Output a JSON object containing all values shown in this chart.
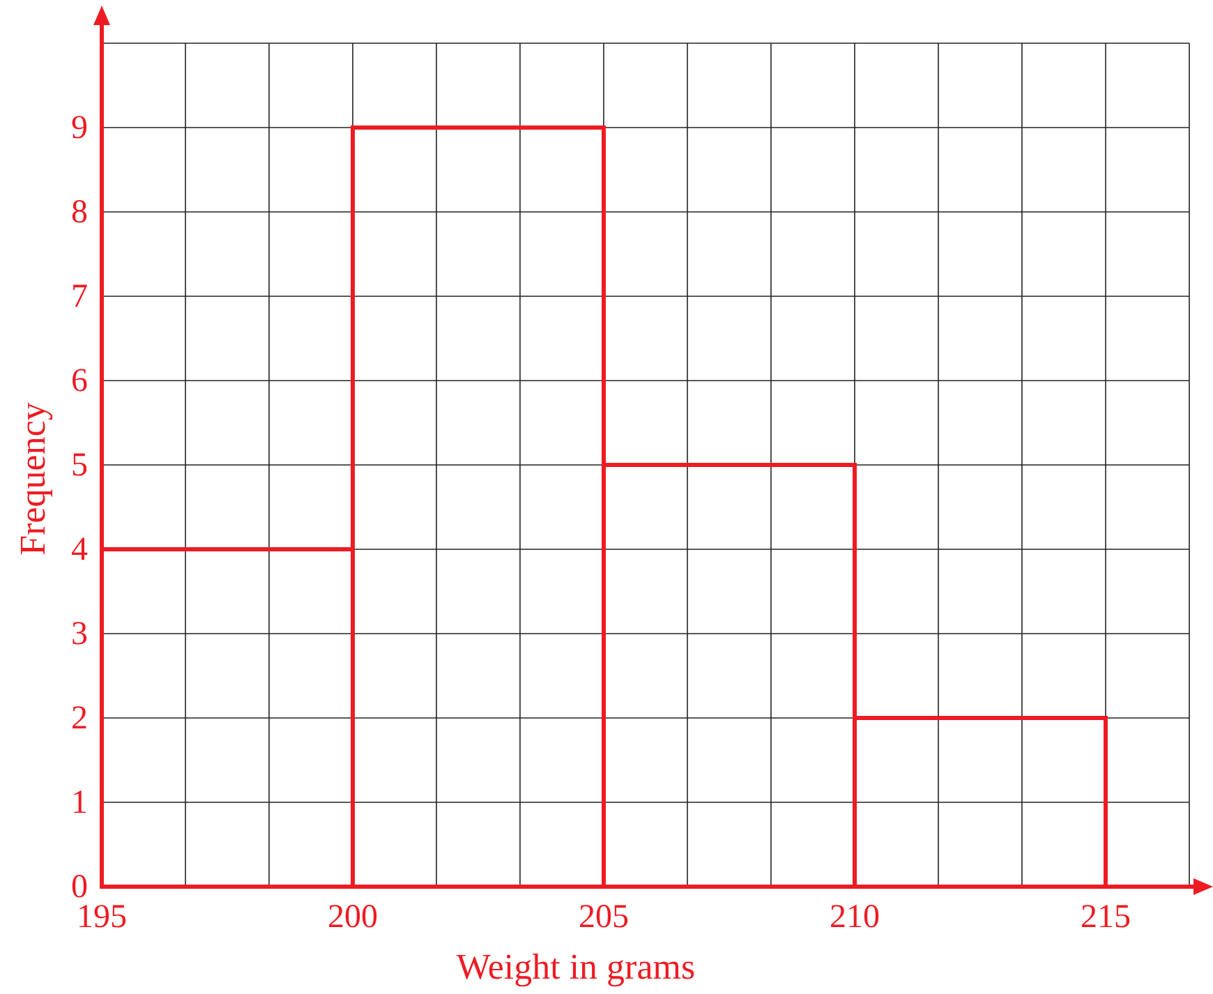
{
  "chart_data": {
    "type": "histogram",
    "xlabel": "Weight in grams",
    "ylabel": "Frequency",
    "bins": [
      195,
      200,
      205,
      210,
      215
    ],
    "values": [
      4,
      9,
      5,
      2
    ],
    "color": "#ed1c24",
    "xlim": [
      195,
      216.667
    ],
    "ylim": [
      0,
      10
    ],
    "xticks": [
      195,
      {
        "value": 196.667,
        "label": null
      },
      {
        "value": 198.333,
        "label": null
      },
      200,
      {
        "value": 201.667,
        "label": null
      },
      {
        "value": 203.333,
        "label": null
      },
      205,
      {
        "value": 206.667,
        "label": null
      },
      {
        "value": 208.333,
        "label": null
      },
      210,
      {
        "value": 211.667,
        "label": null
      },
      {
        "value": 213.333,
        "label": null
      },
      215,
      {
        "value": 216.667,
        "label": null
      }
    ],
    "yticks": [
      0,
      1,
      2,
      3,
      4,
      5,
      6,
      7,
      8,
      9,
      {
        "value": 10,
        "label": null
      }
    ],
    "grid": true
  }
}
